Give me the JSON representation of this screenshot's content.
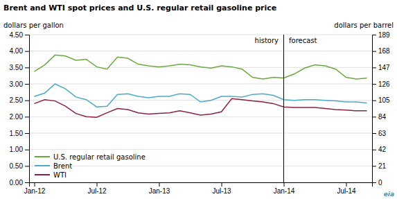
{
  "chart_data": {
    "type": "line",
    "title": "Brent and WTI spot prices and U.S. regular retail gasoline price",
    "ylabel": "dollars per gallon",
    "y2label": "dollars per barrel",
    "categories": [
      "Jan-12",
      null,
      null,
      null,
      null,
      null,
      "Jul-12",
      null,
      null,
      null,
      null,
      null,
      "Jan-13",
      null,
      null,
      null,
      null,
      null,
      "Jul-13",
      null,
      null,
      null,
      null,
      null,
      "Jan-14",
      null,
      null,
      null,
      null,
      null,
      "Jul-14",
      null,
      null
    ],
    "series": [
      {
        "name": "U.S. regular retail gasoline",
        "color": "#6aaa3c",
        "values": [
          3.38,
          3.58,
          3.88,
          3.85,
          3.72,
          3.75,
          3.52,
          3.45,
          3.82,
          3.78,
          3.6,
          3.55,
          3.52,
          3.55,
          3.6,
          3.58,
          3.52,
          3.48,
          3.55,
          3.52,
          3.45,
          3.2,
          3.15,
          3.2,
          3.18,
          3.3,
          3.48,
          3.58,
          3.55,
          3.45,
          3.2,
          3.15,
          3.18
        ]
      },
      {
        "name": "Brent",
        "color": "#4aaac8",
        "values": [
          2.62,
          2.72,
          3.0,
          2.85,
          2.6,
          2.52,
          2.3,
          2.32,
          2.68,
          2.7,
          2.62,
          2.58,
          2.62,
          2.62,
          2.7,
          2.68,
          2.45,
          2.5,
          2.62,
          2.62,
          2.6,
          2.68,
          2.7,
          2.65,
          2.52,
          2.5,
          2.52,
          2.52,
          2.5,
          2.48,
          2.45,
          2.45,
          2.42
        ]
      },
      {
        "name": "WTI",
        "color": "#8b2040",
        "values": [
          2.4,
          2.52,
          2.48,
          2.32,
          2.1,
          2.0,
          1.98,
          2.12,
          2.25,
          2.22,
          2.12,
          2.08,
          2.1,
          2.12,
          2.18,
          2.12,
          2.05,
          2.08,
          2.15,
          2.55,
          2.52,
          2.48,
          2.45,
          2.4,
          2.3,
          2.28,
          2.28,
          2.28,
          2.25,
          2.22,
          2.2,
          2.18,
          2.18
        ]
      }
    ],
    "ylim": [
      0,
      4.5
    ],
    "yticks": [
      {
        "value": 0.0,
        "label": "0.00"
      },
      {
        "value": 0.5,
        "label": "0.50"
      },
      {
        "value": 1.0,
        "label": "1.00"
      },
      {
        "value": 1.5,
        "label": "1.50"
      },
      {
        "value": 2.0,
        "label": "2.00"
      },
      {
        "value": 2.5,
        "label": "2.50"
      },
      {
        "value": 3.0,
        "label": "3.00"
      },
      {
        "value": 3.5,
        "label": "3.50"
      },
      {
        "value": 4.0,
        "label": "4.00"
      },
      {
        "value": 4.5,
        "label": "4.50"
      }
    ],
    "y2lim": [
      0,
      189
    ],
    "y2ticks": [
      0,
      21,
      42,
      63,
      84,
      105,
      126,
      147,
      168,
      189
    ],
    "vline": {
      "x": 24,
      "labels": [
        "history",
        "forecast"
      ]
    },
    "annotations": [
      "eia"
    ],
    "grid": true,
    "legend": "lower left"
  }
}
